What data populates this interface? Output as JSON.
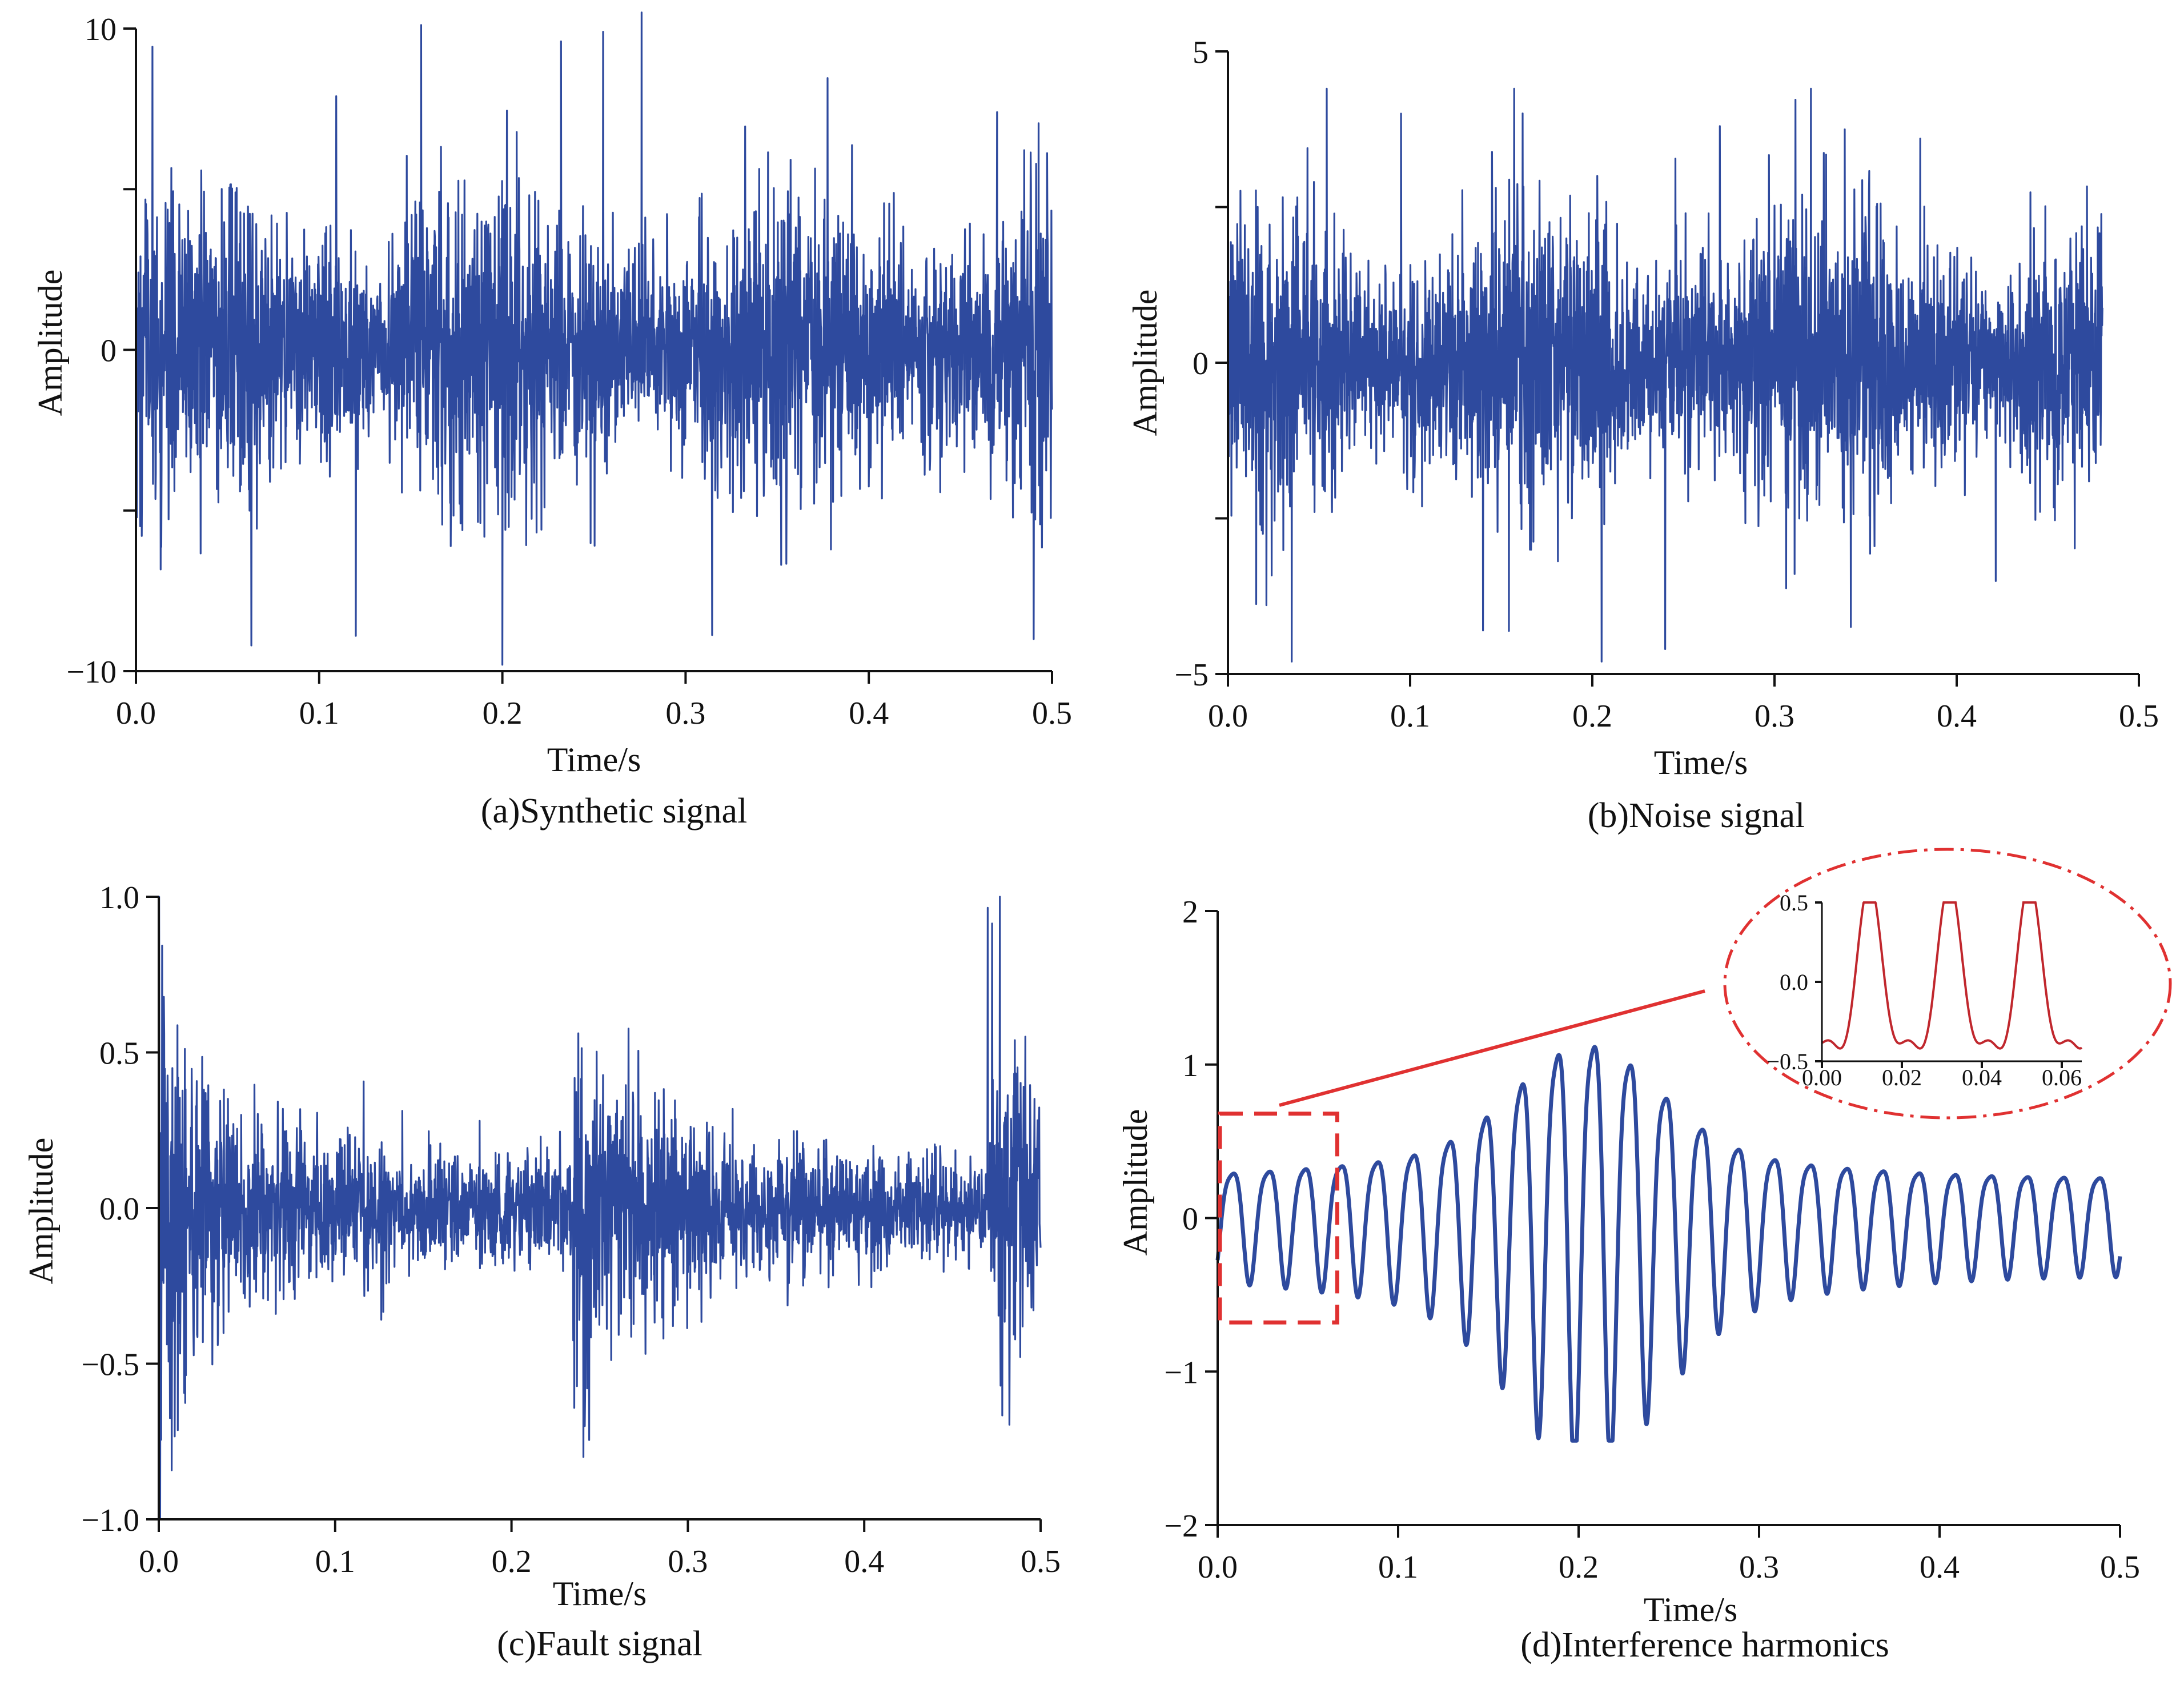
{
  "colors": {
    "series": "#2e4a9e",
    "inset_series": "#c0272d",
    "highlight": "#e03131",
    "axis": "#111111"
  },
  "chart_data": [
    {
      "type": "line",
      "caption": "(a)Synthetic signal",
      "xlabel": "Time/s",
      "ylabel": "Amplitude",
      "xlim": [
        0,
        0.5
      ],
      "ylim": [
        -10,
        10
      ],
      "x_ticks": [
        0.0,
        0.1,
        0.2,
        0.3,
        0.4,
        0.5
      ],
      "x_tick_labels": [
        "0.0",
        "0.1",
        "0.2",
        "0.3",
        "0.4",
        "0.5"
      ],
      "y_ticks": [
        10,
        5,
        0,
        -5,
        -10
      ],
      "y_tick_labels": [
        "10",
        "",
        "0",
        "",
        "−10"
      ],
      "x_end": 0.5,
      "series": [
        {
          "kind": "noise",
          "x_range": [
            0,
            0.5
          ],
          "envelope": 4.2,
          "max": 10.5,
          "min": -9.8,
          "peaks": [
            [
              0.276,
              10.5
            ],
            [
              0.255,
              9.9
            ],
            [
              0.232,
              9.6
            ],
            [
              0.2,
              -9.8
            ],
            [
              0.063,
              -9.2
            ],
            [
              0.12,
              -8.9
            ],
            [
              0.49,
              -9.0
            ],
            [
              0.47,
              7.4
            ]
          ]
        }
      ]
    },
    {
      "type": "line",
      "caption": "(b)Noise signal",
      "xlabel": "Time/s",
      "ylabel": "Amplitude",
      "xlim": [
        0,
        0.5
      ],
      "ylim": [
        -5,
        5
      ],
      "x_ticks": [
        0.0,
        0.1,
        0.2,
        0.3,
        0.4,
        0.5
      ],
      "x_tick_labels": [
        "0.0",
        "0.1",
        "0.2",
        "0.3",
        "0.4",
        "0.5"
      ],
      "y_ticks": [
        5,
        2.5,
        0,
        -2.5,
        -5
      ],
      "y_tick_labels": [
        "5",
        "",
        "0",
        "",
        "−5"
      ],
      "x_end": 0.48,
      "series": [
        {
          "kind": "noise",
          "x_range": [
            0,
            0.48
          ],
          "envelope": 2.1,
          "max": 4.4,
          "min": -4.8,
          "peaks": [
            [
              0.32,
              4.4
            ],
            [
              0.095,
              4.0
            ],
            [
              0.27,
              3.8
            ],
            [
              0.035,
              -4.8
            ],
            [
              0.24,
              -4.6
            ],
            [
              0.14,
              -4.3
            ],
            [
              0.38,
              3.6
            ]
          ]
        }
      ]
    },
    {
      "type": "line",
      "caption": "(c)Fault signal",
      "xlabel": "Time/s",
      "ylabel": "Amplitude",
      "xlim": [
        0,
        0.5
      ],
      "ylim": [
        -1.0,
        1.0
      ],
      "x_ticks": [
        0.0,
        0.1,
        0.2,
        0.3,
        0.4,
        0.5
      ],
      "x_tick_labels": [
        "0.0",
        "0.1",
        "0.2",
        "0.3",
        "0.4",
        "0.5"
      ],
      "y_ticks": [
        1.0,
        0.5,
        0.0,
        -0.5,
        -1.0
      ],
      "y_tick_labels": [
        "1.0",
        "0.5",
        "0.0",
        "−0.5",
        "−1.0"
      ],
      "x_end": 0.5,
      "series": [
        {
          "kind": "impulse",
          "x_range": [
            0,
            0.5
          ],
          "period": 0.235,
          "envelope": 0.55,
          "max": 1.0,
          "min": -1.0
        }
      ]
    },
    {
      "type": "line",
      "caption": "(d)Interference harmonics",
      "xlabel": "Time/s",
      "ylabel": "Amplitude",
      "xlim": [
        0,
        0.5
      ],
      "ylim": [
        -2,
        2
      ],
      "x_ticks": [
        0.0,
        0.1,
        0.2,
        0.3,
        0.4,
        0.5
      ],
      "x_tick_labels": [
        "0.0",
        "0.1",
        "0.2",
        "0.3",
        "0.4",
        "0.5"
      ],
      "y_ticks": [
        2,
        1,
        0,
        -1,
        -2
      ],
      "y_tick_labels": [
        "2",
        "1",
        "0",
        "−1",
        "−2"
      ],
      "x_end": 0.5,
      "series": [
        {
          "kind": "harmonic",
          "x_range": [
            0,
            0.5
          ],
          "frequency": 50,
          "peak_times": [
            0.2
          ],
          "amplitude_range": [
            0.4,
            1.45
          ]
        }
      ],
      "highlight_box": {
        "x": [
          0.0,
          0.065
        ],
        "y": [
          -0.68,
          0.68
        ]
      },
      "inset": {
        "xlim": [
          0,
          0.065
        ],
        "ylim": [
          -0.5,
          0.5
        ],
        "x_ticks": [
          0.0,
          0.02,
          0.04,
          0.06
        ],
        "x_tick_labels": [
          "0.00",
          "0.02",
          "0.04",
          "0.06"
        ],
        "y_ticks": [
          0.5,
          0.0,
          -0.5
        ],
        "y_tick_labels": [
          "0.5",
          "0.0",
          "−0.5"
        ]
      }
    }
  ]
}
